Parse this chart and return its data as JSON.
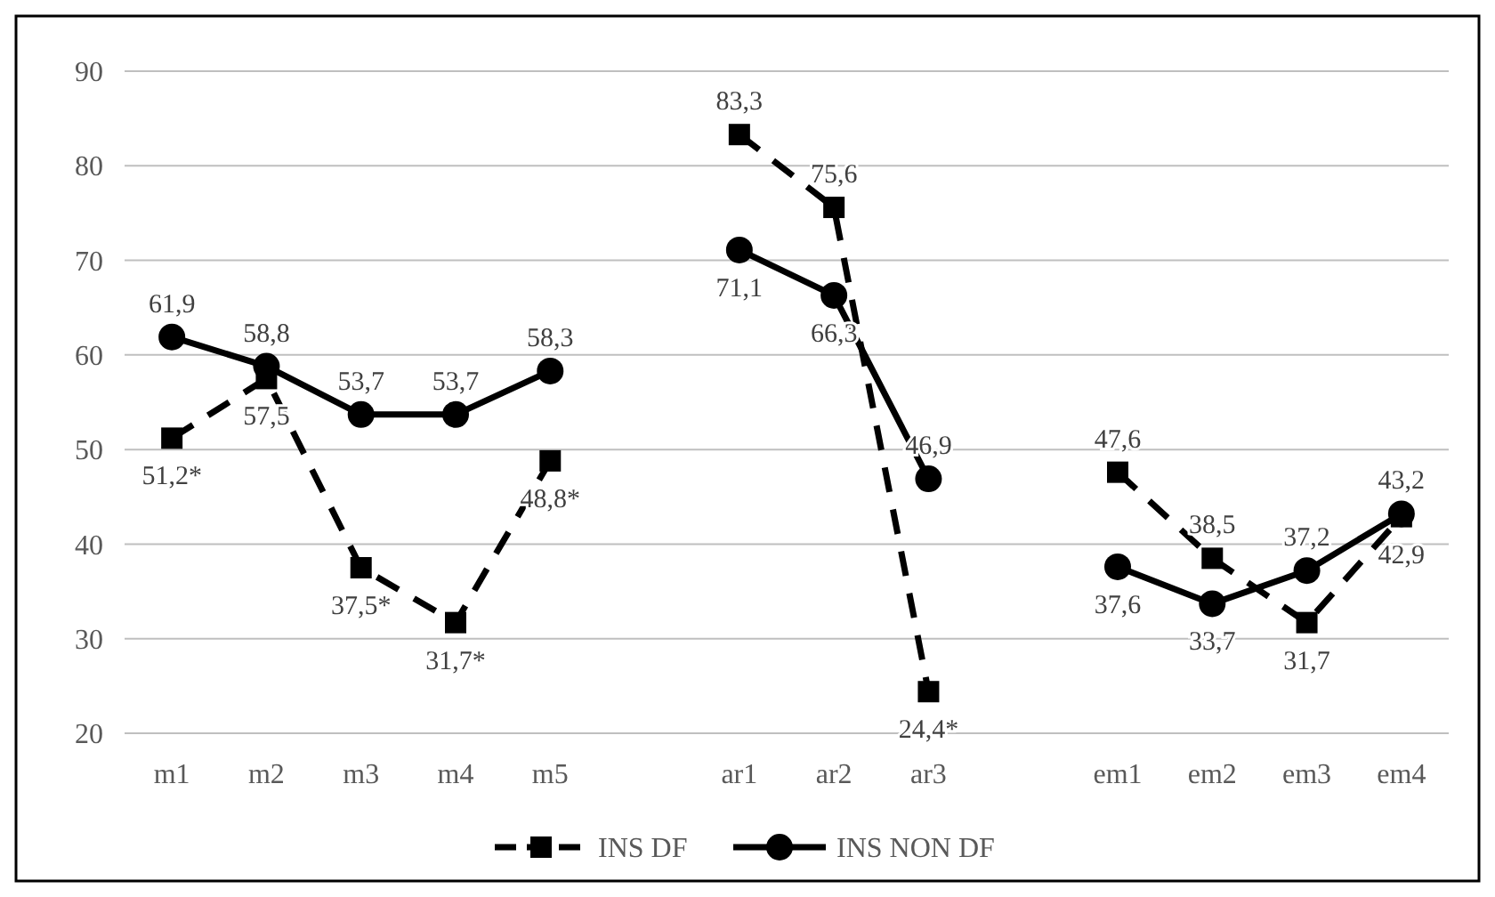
{
  "chart_data": {
    "type": "line",
    "categories": [
      "m1",
      "m2",
      "m3",
      "m4",
      "m5",
      null,
      "ar1",
      "ar2",
      "ar3",
      null,
      "em1",
      "em2",
      "em3",
      "em4"
    ],
    "series": [
      {
        "name": "INS DF",
        "color": "#000000",
        "marker": "square",
        "line_style": "dashed",
        "values": [
          51.2,
          57.5,
          37.5,
          31.7,
          48.8,
          null,
          83.3,
          75.6,
          24.4,
          null,
          47.6,
          38.5,
          31.7,
          42.9
        ],
        "value_labels": [
          "51,2*",
          "57,5",
          "37,5*",
          "31,7*",
          "48,8*",
          null,
          "83,3",
          "75,6",
          "24,4*",
          null,
          "47,6",
          "38,5",
          "31,7",
          "42,9"
        ]
      },
      {
        "name": "INS NON DF",
        "color": "#000000",
        "marker": "circle",
        "line_style": "solid",
        "values": [
          61.9,
          58.8,
          53.7,
          53.7,
          58.3,
          null,
          71.1,
          66.3,
          46.9,
          null,
          37.6,
          33.7,
          37.2,
          43.2
        ],
        "value_labels": [
          "61,9",
          "58,8",
          "53,7",
          "53,7",
          "58,3",
          null,
          "71,1",
          "66,3",
          "46,9",
          null,
          "37,6",
          "33,7",
          "37,2",
          "43,2"
        ]
      }
    ],
    "ylim": [
      20,
      90
    ],
    "yticks": [
      20,
      30,
      40,
      50,
      60,
      70,
      80,
      90
    ],
    "grid": "y",
    "legend": "bottom"
  }
}
